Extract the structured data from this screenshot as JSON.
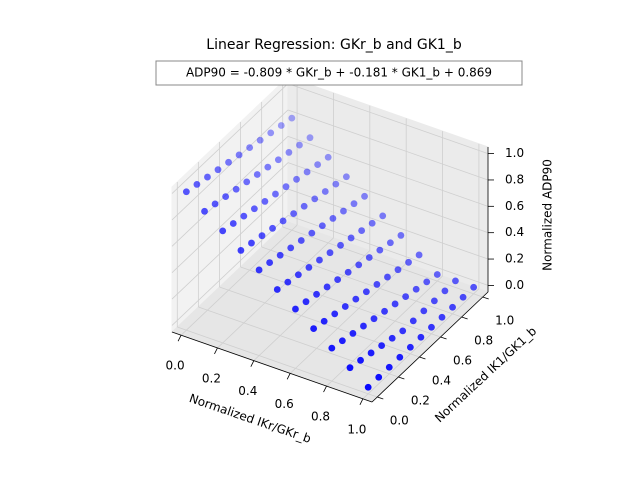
{
  "chart_data": {
    "type": "scatter3d",
    "title": "Linear Regression: GKr_b and GK1_b",
    "annotation": "ADP90 = -0.809 * GKr_b + -0.181 * GK1_b + 0.869",
    "xlabel": "Normalized IKr/GKr_b",
    "ylabel": "Normalized IK1/GK1_b",
    "zlabel": "Normalized ADP90",
    "color": "#0000ff",
    "grid": true,
    "xlim": [
      -0.05,
      1.05
    ],
    "ylim": [
      -0.05,
      1.05
    ],
    "zlim": [
      -0.05,
      1.05
    ],
    "xticks": [
      {
        "value": 0,
        "label": "0.0"
      },
      {
        "value": 0.2,
        "label": "0.2"
      },
      {
        "value": 0.4,
        "label": "0.4"
      },
      {
        "value": 0.6,
        "label": "0.6"
      },
      {
        "value": 0.8,
        "label": "0.8"
      },
      {
        "value": 1,
        "label": "1.0"
      }
    ],
    "yticks": [
      {
        "value": 0,
        "label": "0.0"
      },
      {
        "value": 0.2,
        "label": "0.2"
      },
      {
        "value": 0.4,
        "label": "0.4"
      },
      {
        "value": 0.6,
        "label": "0.6"
      },
      {
        "value": 0.8,
        "label": "0.8"
      },
      {
        "value": 1,
        "label": "1.0"
      }
    ],
    "zticks": [
      {
        "value": 0,
        "label": "0.0"
      },
      {
        "value": 0.2,
        "label": "0.2"
      },
      {
        "value": 0.4,
        "label": "0.4"
      },
      {
        "value": 0.6,
        "label": "0.6"
      },
      {
        "value": 0.8,
        "label": "0.8"
      },
      {
        "value": 1,
        "label": "1.0"
      }
    ],
    "x": [
      0,
      0.1,
      0.2,
      0.3,
      0.4,
      0.5,
      0.6,
      0.7,
      0.8,
      0.9,
      1,
      0,
      0.1,
      0.2,
      0.3,
      0.4,
      0.5,
      0.6,
      0.7,
      0.8,
      0.9,
      1,
      0,
      0.1,
      0.2,
      0.3,
      0.4,
      0.5,
      0.6,
      0.7,
      0.8,
      0.9,
      1,
      0,
      0.1,
      0.2,
      0.3,
      0.4,
      0.5,
      0.6,
      0.7,
      0.8,
      0.9,
      1,
      0,
      0.1,
      0.2,
      0.3,
      0.4,
      0.5,
      0.6,
      0.7,
      0.8,
      0.9,
      1,
      0,
      0.1,
      0.2,
      0.3,
      0.4,
      0.5,
      0.6,
      0.7,
      0.8,
      0.9,
      1,
      0,
      0.1,
      0.2,
      0.3,
      0.4,
      0.5,
      0.6,
      0.7,
      0.8,
      0.9,
      1,
      0,
      0.1,
      0.2,
      0.3,
      0.4,
      0.5,
      0.6,
      0.7,
      0.8,
      0.9,
      1,
      0,
      0.1,
      0.2,
      0.3,
      0.4,
      0.5,
      0.6,
      0.7,
      0.8,
      0.9,
      1,
      0,
      0.1,
      0.2,
      0.3,
      0.4,
      0.5,
      0.6,
      0.7,
      0.8,
      0.9,
      1,
      0,
      0.1,
      0.2,
      0.3,
      0.4,
      0.5,
      0.6,
      0.7,
      0.8,
      0.9,
      1
    ],
    "y": [
      0,
      0,
      0,
      0,
      0,
      0,
      0,
      0,
      0,
      0,
      0,
      0.1,
      0.1,
      0.1,
      0.1,
      0.1,
      0.1,
      0.1,
      0.1,
      0.1,
      0.1,
      0.1,
      0.2,
      0.2,
      0.2,
      0.2,
      0.2,
      0.2,
      0.2,
      0.2,
      0.2,
      0.2,
      0.2,
      0.3,
      0.3,
      0.3,
      0.3,
      0.3,
      0.3,
      0.3,
      0.3,
      0.3,
      0.3,
      0.3,
      0.4,
      0.4,
      0.4,
      0.4,
      0.4,
      0.4,
      0.4,
      0.4,
      0.4,
      0.4,
      0.4,
      0.5,
      0.5,
      0.5,
      0.5,
      0.5,
      0.5,
      0.5,
      0.5,
      0.5,
      0.5,
      0.5,
      0.6,
      0.6,
      0.6,
      0.6,
      0.6,
      0.6,
      0.6,
      0.6,
      0.6,
      0.6,
      0.6,
      0.7,
      0.7,
      0.7,
      0.7,
      0.7,
      0.7,
      0.7,
      0.7,
      0.7,
      0.7,
      0.7,
      0.8,
      0.8,
      0.8,
      0.8,
      0.8,
      0.8,
      0.8,
      0.8,
      0.8,
      0.8,
      0.8,
      0.9,
      0.9,
      0.9,
      0.9,
      0.9,
      0.9,
      0.9,
      0.9,
      0.9,
      0.9,
      0.9,
      1,
      1,
      1,
      1,
      1,
      1,
      1,
      1,
      1,
      1,
      1
    ],
    "z": [
      1,
      0.9,
      0.8,
      0.7,
      0.6,
      0.5,
      0.4,
      0.3,
      0.2,
      0.1,
      0,
      0.98,
      0.88,
      0.78,
      0.68,
      0.58,
      0.48,
      0.38,
      0.28,
      0.18,
      0.08,
      0,
      0.96,
      0.86,
      0.76,
      0.66,
      0.56,
      0.46,
      0.36,
      0.26,
      0.16,
      0.06,
      0,
      0.94,
      0.84,
      0.74,
      0.64,
      0.54,
      0.44,
      0.34,
      0.24,
      0.14,
      0.04,
      0,
      0.92,
      0.82,
      0.72,
      0.62,
      0.52,
      0.42,
      0.32,
      0.22,
      0.12,
      0.02,
      0,
      0.9,
      0.8,
      0.7,
      0.6,
      0.5,
      0.4,
      0.3,
      0.2,
      0.1,
      0,
      0,
      0.88,
      0.78,
      0.68,
      0.58,
      0.48,
      0.38,
      0.28,
      0.18,
      0.08,
      0,
      0,
      0.86,
      0.76,
      0.66,
      0.56,
      0.46,
      0.36,
      0.26,
      0.16,
      0.06,
      0,
      0,
      0.84,
      0.74,
      0.64,
      0.54,
      0.44,
      0.34,
      0.24,
      0.14,
      0.04,
      0,
      0,
      0.82,
      0.72,
      0.62,
      0.52,
      0.42,
      0.32,
      0.22,
      0.12,
      0.02,
      0,
      0,
      0.8,
      0.7,
      0.6,
      0.5,
      0.4,
      0.3,
      0.2,
      0.1,
      0,
      0,
      0
    ]
  }
}
